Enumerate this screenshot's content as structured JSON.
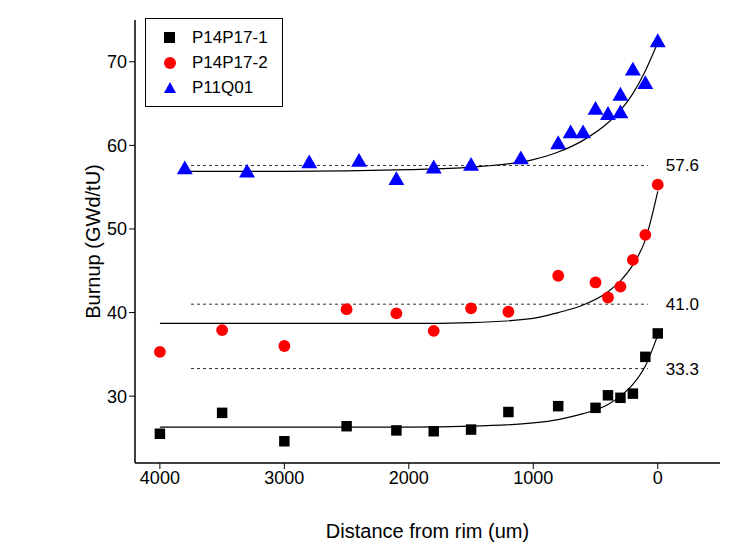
{
  "chart_data": {
    "type": "scatter",
    "xlabel": "Distance from rim (um)",
    "ylabel": "Burnup (GWd/tU)",
    "xlim": [
      4200,
      -500
    ],
    "xticks": [
      4000,
      3000,
      2000,
      1000,
      0
    ],
    "ylim": [
      22,
      75
    ],
    "yticks": [
      30,
      40,
      50,
      60,
      70
    ],
    "grid": false,
    "legend": "upper left",
    "series": [
      {
        "name": "P14P17-1",
        "color": "#000000",
        "marker": "square",
        "x": [
          4000,
          3500,
          3000,
          2500,
          2100,
          1800,
          1500,
          1200,
          800,
          500,
          400,
          300,
          200,
          100,
          0
        ],
        "values": [
          25.5,
          28.0,
          24.6,
          26.4,
          25.9,
          25.8,
          26.0,
          28.1,
          28.8,
          28.6,
          30.1,
          29.8,
          30.3,
          34.7,
          37.5
        ],
        "fit_x": [
          4000,
          3000,
          2000,
          1500,
          1000,
          800,
          600,
          400,
          300,
          200,
          100,
          0
        ],
        "fit_values": [
          26.3,
          26.3,
          26.3,
          26.4,
          26.8,
          27.2,
          27.9,
          29.0,
          30.0,
          31.4,
          33.6,
          37.3
        ]
      },
      {
        "name": "P14P17-2",
        "color": "#ff0000",
        "marker": "circle",
        "x": [
          4000,
          3500,
          3000,
          2500,
          2100,
          1800,
          1500,
          1200,
          800,
          500,
          400,
          300,
          200,
          100,
          0
        ],
        "values": [
          35.3,
          37.9,
          36.0,
          40.4,
          39.9,
          37.8,
          40.5,
          40.1,
          44.4,
          43.6,
          41.8,
          43.1,
          46.3,
          49.3,
          55.3
        ],
        "fit_x": [
          4000,
          3000,
          2000,
          1500,
          1000,
          800,
          600,
          400,
          300,
          200,
          100,
          0
        ],
        "fit_values": [
          38.7,
          38.7,
          38.7,
          38.8,
          39.3,
          40.0,
          40.9,
          42.5,
          43.8,
          45.7,
          48.7,
          54.5
        ]
      },
      {
        "name": "P11Q01",
        "color": "#0000ff",
        "marker": "triangle",
        "x": [
          3800,
          3300,
          2800,
          2400,
          2100,
          1800,
          1500,
          1100,
          800,
          700,
          600,
          500,
          400,
          300,
          300,
          200,
          100,
          0
        ],
        "values": [
          57.1,
          56.7,
          57.8,
          58.0,
          55.8,
          57.2,
          57.5,
          58.3,
          60.1,
          61.4,
          61.4,
          64.2,
          63.6,
          65.9,
          63.8,
          68.9,
          67.3,
          72.3
        ],
        "fit_x": [
          3800,
          3000,
          2000,
          1500,
          1000,
          800,
          600,
          400,
          300,
          200,
          100,
          0
        ],
        "fit_values": [
          56.9,
          56.9,
          57.1,
          57.4,
          58.3,
          59.2,
          60.6,
          62.7,
          64.2,
          66.2,
          68.9,
          72.3
        ]
      }
    ],
    "reference_lines": [
      {
        "value": 57.6,
        "label": "57.6",
        "x": [
          3750,
          80
        ]
      },
      {
        "value": 41.0,
        "label": "41.0",
        "x": [
          3750,
          80
        ]
      },
      {
        "value": 33.3,
        "label": "33.3",
        "x": [
          3750,
          80
        ]
      }
    ]
  }
}
